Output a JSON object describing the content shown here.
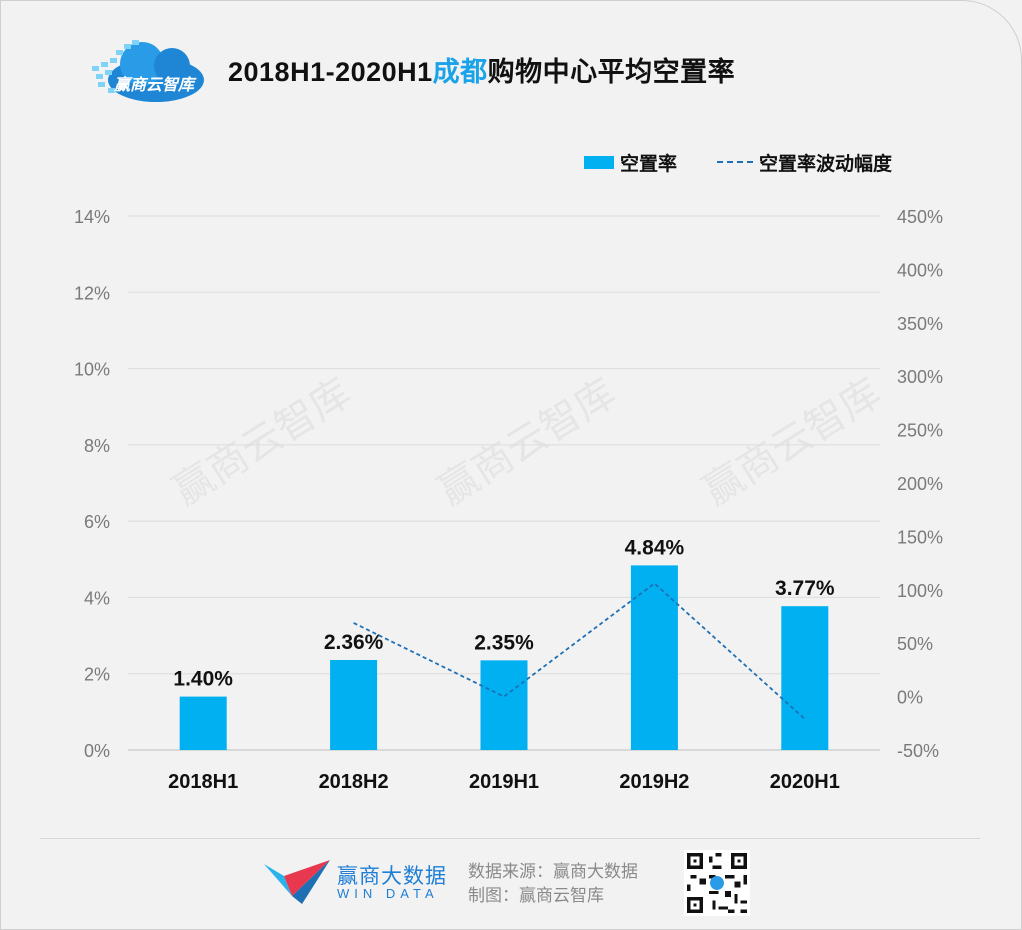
{
  "header": {
    "logo_text": "赢商云智库",
    "title_part1": "2018H1-2020H1",
    "title_highlight": "成都",
    "title_part2": "购物中心平均空置率"
  },
  "watermark": "赢商云智库",
  "colors": {
    "bar": "#00b0f0",
    "line": "#1f6fb5",
    "title_highlight": "#1aa3e8",
    "brand": "#1f7fd6"
  },
  "chart_data": {
    "type": "bar",
    "title": "2018H1-2020H1成都购物中心平均空置率",
    "categories": [
      "2018H1",
      "2018H2",
      "2019H1",
      "2019H2",
      "2020H1"
    ],
    "series": [
      {
        "name": "空置率",
        "type": "bar",
        "axis": "left",
        "values": [
          1.4,
          2.36,
          2.35,
          4.84,
          3.77
        ],
        "labels": [
          "1.40%",
          "2.36%",
          "2.35%",
          "4.84%",
          "3.77%"
        ]
      },
      {
        "name": "空置率波动幅度",
        "type": "line",
        "style": "dashed",
        "axis": "right",
        "values": [
          null,
          69,
          0,
          106,
          -21
        ]
      }
    ],
    "y_left": {
      "min": 0,
      "max": 14,
      "step": 2,
      "unit": "%"
    },
    "y_right": {
      "min": -50,
      "max": 450,
      "step": 50,
      "unit": "%"
    },
    "grid": true,
    "legend_position": "top-right"
  },
  "footer": {
    "brand_cn": "赢商大数据",
    "brand_en": "WIN DATA",
    "source": "数据来源：赢商大数据",
    "maker": "制图：赢商云智库"
  }
}
